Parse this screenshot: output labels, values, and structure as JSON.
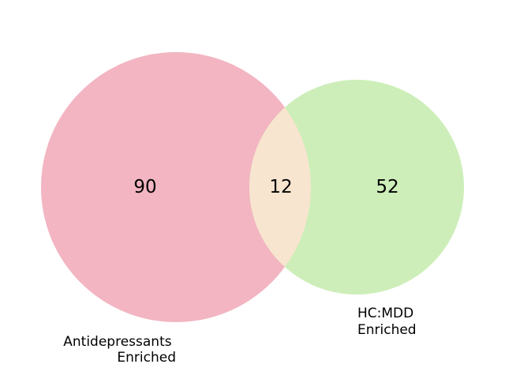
{
  "chart_data": {
    "type": "venn",
    "sets": [
      {
        "key": "antidepressants",
        "label_lines": [
          "Antidepressants",
          "Enriched"
        ],
        "only_count": "90",
        "color": "#f2b5c1"
      },
      {
        "key": "hc_mdd",
        "label_lines": [
          "HC:MDD",
          "Enriched"
        ],
        "only_count": "52",
        "color": "#cdeeb9"
      }
    ],
    "intersection": {
      "count": "12",
      "color": "#f8e5cf"
    }
  }
}
